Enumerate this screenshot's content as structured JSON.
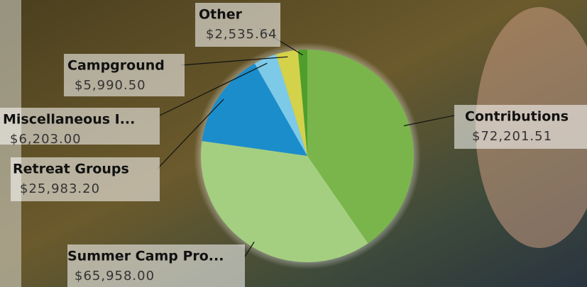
{
  "chart_data": {
    "type": "pie",
    "categories": [
      "Contributions",
      "Summer Camp Pro...",
      "Retreat Groups",
      "Miscellaneous I...",
      "Campground",
      "Other"
    ],
    "values": [
      72201.51,
      65958.0,
      25983.2,
      6203.0,
      5990.5,
      2535.64
    ],
    "value_labels": [
      "$72,201.51",
      "$65,958.00",
      "$25,983.20",
      "$6,203.00",
      "$5,990.50",
      "$2,535.64"
    ],
    "colors": [
      "#7ab54b",
      "#a4cf80",
      "#1b8dcb",
      "#7dcae8",
      "#d3d24a",
      "#4f9e2b"
    ]
  }
}
